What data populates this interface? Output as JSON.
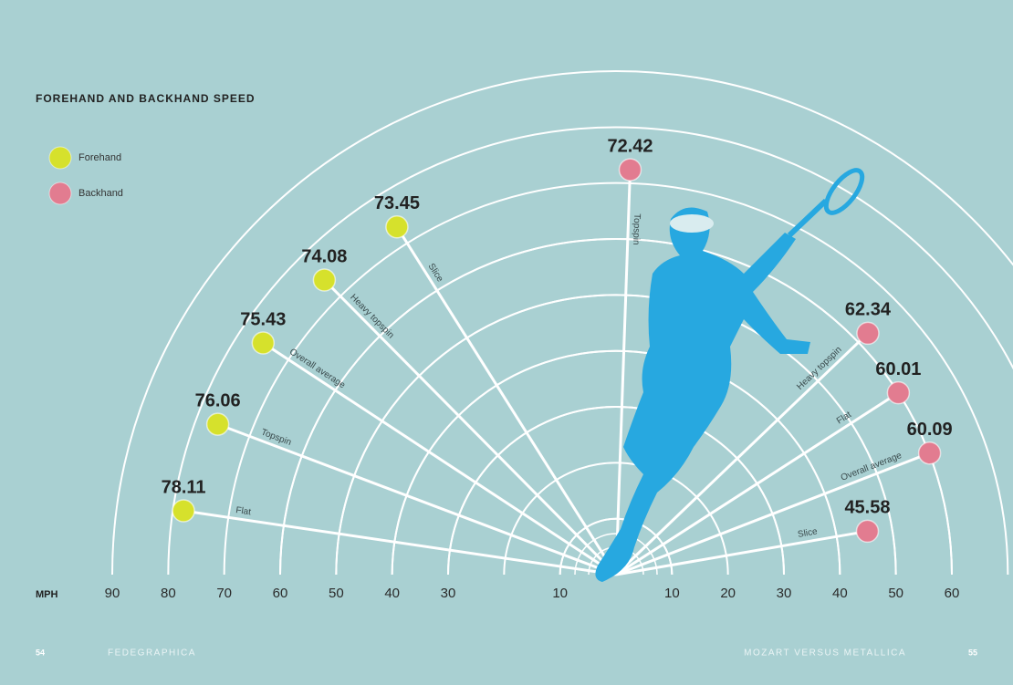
{
  "chart_data": {
    "type": "radial",
    "title": "FOREHAND AND BACKHAND SPEED",
    "axis_label": "MPH",
    "rlim": [
      0,
      90
    ],
    "ticks_left": [
      90,
      80,
      70,
      60,
      50,
      40,
      30,
      10
    ],
    "ticks_right": [
      10,
      20,
      30,
      40,
      50,
      60
    ],
    "series": [
      {
        "name": "Forehand",
        "color": "#d6e12c",
        "categories": [
          "Flat",
          "Topspin",
          "Overall average",
          "Heavy topspin",
          "Slice"
        ],
        "values": [
          78.11,
          76.06,
          75.43,
          74.08,
          73.45
        ]
      },
      {
        "name": "Backhand",
        "color": "#e27c90",
        "categories": [
          "Slice",
          "Overall average",
          "Flat",
          "Heavy topspin",
          "Topspin"
        ],
        "values": [
          45.58,
          60.09,
          60.01,
          62.34,
          72.42
        ]
      }
    ]
  },
  "footer": {
    "left_page": "54",
    "left_text": "FEDEGRAPHICA",
    "right_text": "MOZART VERSUS METALLICA",
    "right_page": "55"
  }
}
